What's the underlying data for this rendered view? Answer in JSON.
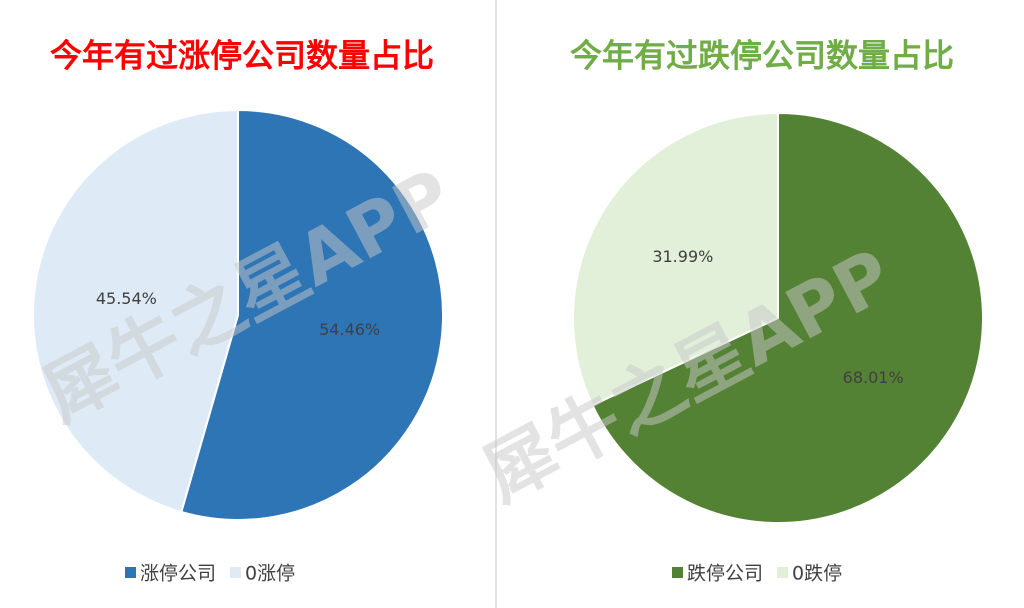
{
  "watermark": "犀牛之星APP",
  "chart_data": [
    {
      "type": "pie",
      "title": "今年有过涨停公司数量占比",
      "title_color": "#ff0000",
      "categories": [
        "涨停公司",
        "0涨停"
      ],
      "values": [
        54.46,
        45.54
      ],
      "value_labels": [
        "54.46%",
        "45.54%"
      ],
      "colors": [
        "#2e75b6",
        "#deebf7"
      ]
    },
    {
      "type": "pie",
      "title": "今年有过跌停公司数量占比",
      "title_color": "#70ad47",
      "categories": [
        "跌停公司",
        "0跌停"
      ],
      "values": [
        68.01,
        31.99
      ],
      "value_labels": [
        "68.01%",
        "31.99%"
      ],
      "colors": [
        "#548235",
        "#e2f0d9"
      ]
    }
  ]
}
